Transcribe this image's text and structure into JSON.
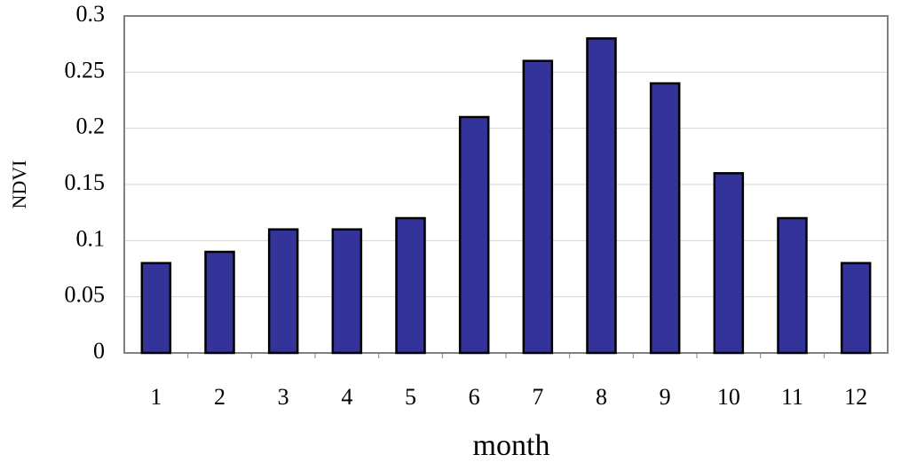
{
  "chart_data": {
    "type": "bar",
    "x_label": "month",
    "y_label": "NDVI",
    "categories": [
      "1",
      "2",
      "3",
      "4",
      "5",
      "6",
      "7",
      "8",
      "9",
      "10",
      "11",
      "12"
    ],
    "values": [
      0.08,
      0.09,
      0.11,
      0.11,
      0.12,
      0.21,
      0.26,
      0.28,
      0.24,
      0.16,
      0.12,
      0.08
    ],
    "color": "#333399",
    "ylim": [
      0,
      0.3
    ],
    "yticks": [
      0,
      0.05,
      0.1,
      0.15,
      0.2,
      0.25,
      0.3
    ],
    "grid": true
  }
}
